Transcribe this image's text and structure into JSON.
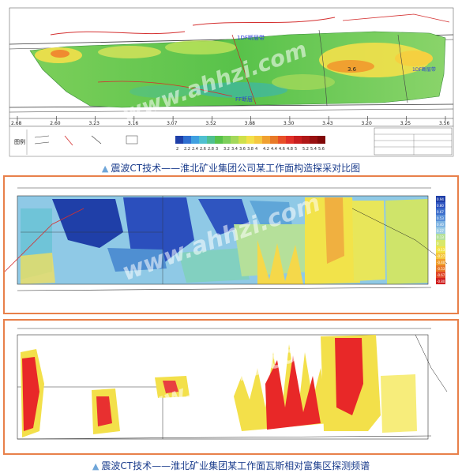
{
  "figures": [
    {
      "caption": "震波CT技术——淮北矿业集团公司某工作面构造探采对比图",
      "annotations": {
        "fault_upper": "1DF断层带",
        "fault_lower": "FF断层",
        "fault_right": "3.6",
        "fault_far_right": "1DF断层带"
      },
      "axis_labels": [
        "2.68",
        "2.60",
        "3.23",
        "3.16",
        "3.07",
        "3.52",
        "3.88",
        "3.30",
        "3.43",
        "3.20",
        "3.25",
        "3.56"
      ],
      "scale_values": [
        "2",
        "2.2",
        "2.4",
        "2.6",
        "2.8",
        "3",
        "3.2",
        "3.4",
        "3.6",
        "3.8",
        "4",
        "4.2",
        "4.4",
        "4.6",
        "4.8",
        "5",
        "5.2",
        "5.4",
        "5.6"
      ],
      "legend_title": "图例"
    },
    {
      "caption": "",
      "scale_values": [
        "0.94",
        "0.80",
        "0.67",
        "0.53",
        "0.40",
        "0.27",
        "0.13",
        "0",
        "-0.13",
        "-0.27",
        "-0.40",
        "-0.53",
        "-0.67",
        "-0.80"
      ]
    },
    {
      "caption": "震波CT技术——淮北矿业集团某工作面瓦斯相对富集区探测频谱"
    }
  ],
  "watermark": "www.ahhzi.com",
  "colors": {
    "caption_text": "#1a3c8c",
    "frame": "#e8804a",
    "tri": "#6fa6d9"
  }
}
